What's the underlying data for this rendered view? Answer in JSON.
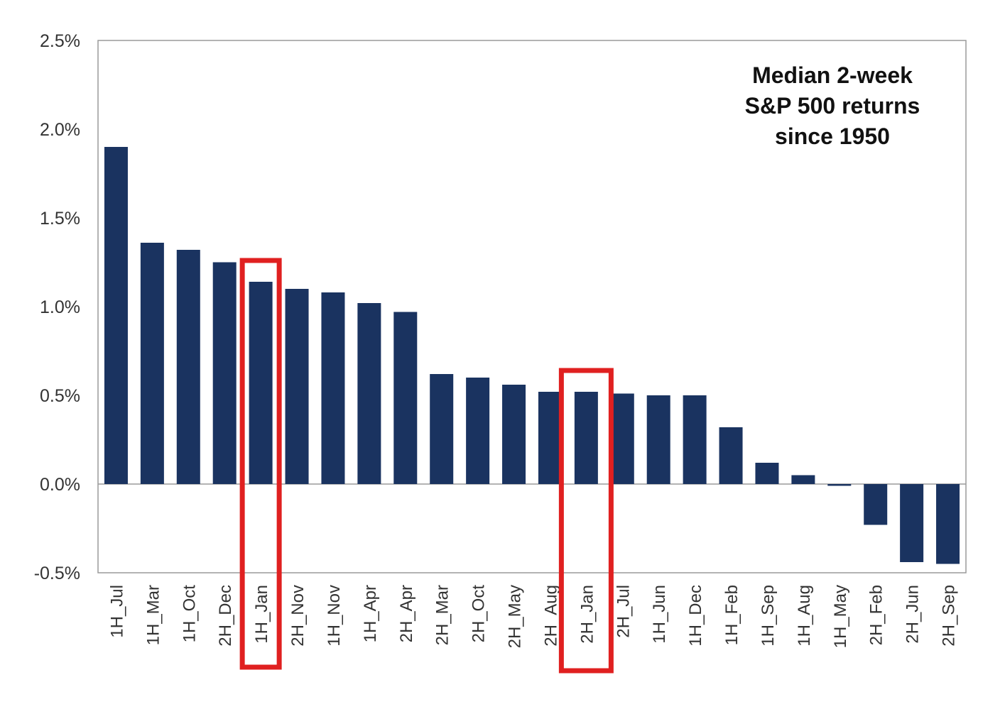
{
  "chart_data": {
    "type": "bar",
    "title_lines": [
      "Median 2-week",
      "S&P 500 returns",
      "since 1950"
    ],
    "xlabel": "",
    "ylabel": "",
    "ylim": [
      -0.5,
      2.5
    ],
    "yticks": [
      "-0.5%",
      "0.0%",
      "0.5%",
      "1.0%",
      "1.5%",
      "2.0%",
      "2.5%"
    ],
    "ytick_values": [
      -0.5,
      0.0,
      0.5,
      1.0,
      1.5,
      2.0,
      2.5
    ],
    "grid": false,
    "categories": [
      "1H_Jul",
      "1H_Mar",
      "1H_Oct",
      "2H_Dec",
      "1H_Jan",
      "2H_Nov",
      "1H_Nov",
      "1H_Apr",
      "2H_Apr",
      "2H_Mar",
      "2H_Oct",
      "2H_May",
      "2H_Aug",
      "2H_Jan",
      "2H_Jul",
      "1H_Jun",
      "1H_Dec",
      "1H_Feb",
      "1H_Sep",
      "1H_Aug",
      "1H_May",
      "2H_Feb",
      "2H_Jun",
      "2H_Sep"
    ],
    "values": [
      1.9,
      1.36,
      1.32,
      1.25,
      1.14,
      1.1,
      1.08,
      1.02,
      0.97,
      0.62,
      0.6,
      0.56,
      0.52,
      0.52,
      0.51,
      0.5,
      0.5,
      0.32,
      0.12,
      0.05,
      -0.01,
      -0.23,
      -0.44,
      -0.45
    ],
    "highlighted": [
      "1H_Jan",
      "2H_Jan"
    ],
    "bar_color": "#1a3360",
    "highlight_color": "#e02020"
  }
}
